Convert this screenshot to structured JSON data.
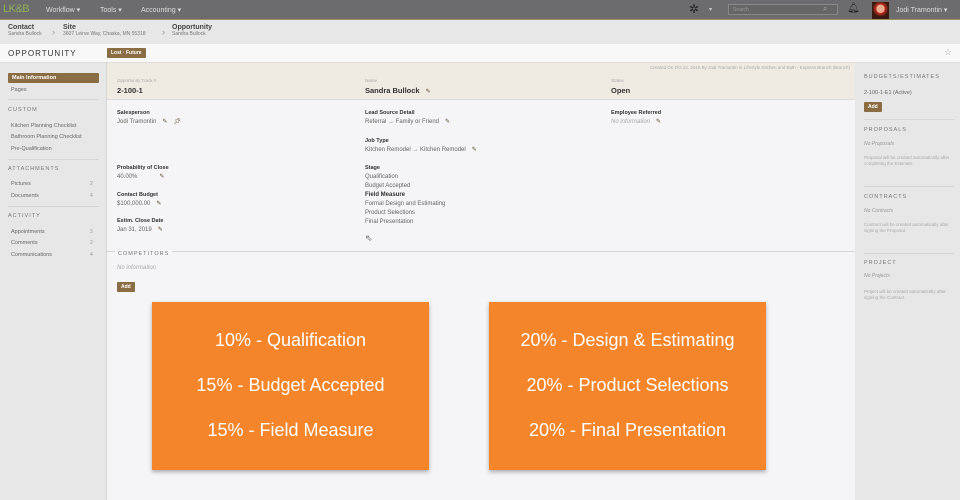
{
  "topbar": {
    "logo": "LK&B",
    "menus": [
      "Workflow ▾",
      "Tools ▾",
      "Accounting ▾"
    ],
    "search_placeholder": "Search",
    "user": "Jodi Tramontin ▾"
  },
  "breadcrumb": [
    {
      "title": "Contact",
      "sub": "Sandra Bullock"
    },
    {
      "title": "Site",
      "sub": "3607 Leirve Way, Chaska, MN 55318"
    },
    {
      "title": "Opportunity",
      "sub": "Sandra Bullock"
    }
  ],
  "page": {
    "title": "OPPORTUNITY",
    "badge": "Lost · Future"
  },
  "leftnav": {
    "main": "Main Information",
    "pages": "Pages",
    "custom": "CUSTOM",
    "custom_items": [
      "Kitchen Planning Checklist",
      "Bathroom Planning Checklist",
      "Pre-Qualification"
    ],
    "attachments": "ATTACHMENTS",
    "attach_items": [
      {
        "label": "Pictures",
        "count": "2"
      },
      {
        "label": "Documents",
        "count": "4"
      }
    ],
    "activity": "ACTIVITY",
    "activity_items": [
      {
        "label": "Appointments",
        "count": "3"
      },
      {
        "label": "Comments",
        "count": "2"
      },
      {
        "label": "Communications",
        "count": "4"
      }
    ]
  },
  "main": {
    "created": "Created On Oct 22, 2018 By Jodi Tramontin in Lifestyle Kitchen and Bath - Express Branch (Branch)",
    "track_label": "Opportunity Track #",
    "track": "2-100-1",
    "name_label": "Name",
    "name": "Sandra Bullock",
    "status_label": "Status",
    "status": "Open",
    "salesperson_label": "Salesperson",
    "salesperson": "Jodi Tramontin",
    "prob_label": "Probability of Close",
    "prob": "40.00%",
    "budget_label": "Contact Budget",
    "budget": "$100,000.00",
    "close_label": "Estim. Close Date",
    "close": "Jan 31, 2019",
    "lead_label": "Lead Source Detail",
    "lead": "Referral → Family or Friend",
    "job_label": "Job Type",
    "job": "Kitchen Remodel → Kitchen Remodel",
    "stage_label": "Stage",
    "stages": [
      "Qualification",
      "Budget Accepted",
      "Field Measure",
      "Formal Design and Estimating",
      "Product Selections",
      "Final Presentation"
    ],
    "current_stage": "Field Measure",
    "emp_label": "Employee Referred",
    "emp": "No information",
    "competitors": "COMPETITORS",
    "comp_none": "No information",
    "add": "Add"
  },
  "overlay": {
    "left": [
      "10% - Qualification",
      "15% - Budget Accepted",
      "15% - Field Measure"
    ],
    "right": [
      "20% - Design & Estimating",
      "20% - Product Selections",
      "20% - Final Presentation"
    ],
    "color": "#f4852a"
  },
  "right": {
    "budgets": "BUDGETS/ESTIMATES",
    "budget_item": "2-100-1-E1 (Active)",
    "add": "Add",
    "proposals": "PROPOSALS",
    "no_proposals": "No Proposals",
    "proposal_note": "Proposal will be created automatically after completing the Estimate.",
    "contracts": "CONTRACTS",
    "no_contracts": "No Contracts",
    "contract_note": "Contract will be created automatically after signing the Proposal.",
    "project": "PROJECT",
    "no_projects": "No Projects",
    "project_note": "Project will be created automatically after signing the Contract."
  }
}
